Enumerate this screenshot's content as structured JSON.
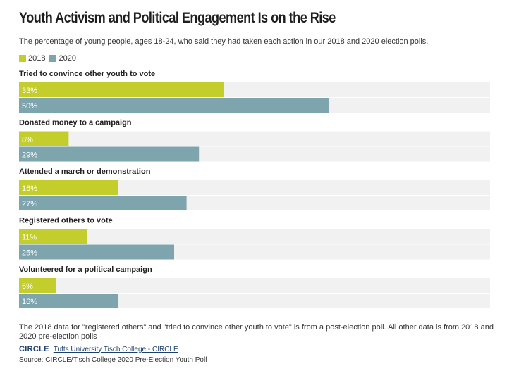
{
  "header": {
    "title": "Youth Activism and Political Engagement Is on the Rise",
    "subtitle": "The percentage of young people, ages 18-24, who said they had taken each action in our 2018 and 2020 election polls."
  },
  "colors": {
    "series_2018": "#c3cd2c",
    "series_2020": "#7ea5ad",
    "track": "#f1f1f1",
    "value_label": "#ffffff"
  },
  "chart_data": {
    "type": "bar",
    "orientation": "horizontal",
    "categories": [
      "Tried to convince other youth to vote",
      "Donated money to a campaign",
      "Attended a march or demonstration",
      "Registered others to vote",
      "Volunteered for a political campaign"
    ],
    "series": [
      {
        "name": "2018",
        "values": [
          33,
          8,
          16,
          11,
          6
        ]
      },
      {
        "name": "2020",
        "values": [
          50,
          29,
          27,
          25,
          16
        ]
      }
    ],
    "value_format": "percent",
    "xlim": [
      0,
      100
    ],
    "legend_position": "top-left",
    "grid": false
  },
  "footer": {
    "note": "The 2018 data for \"registered others\" and \"tried to convince other youth to vote\" is from a post-election poll. All other data is from 2018 and 2020 pre-election polls",
    "logo_text": "CIRCLE",
    "credit_link": "Tufts University Tisch College - CIRCLE",
    "source": "Source: CIRCLE/Tisch College 2020 Pre-Election Youth Poll"
  }
}
